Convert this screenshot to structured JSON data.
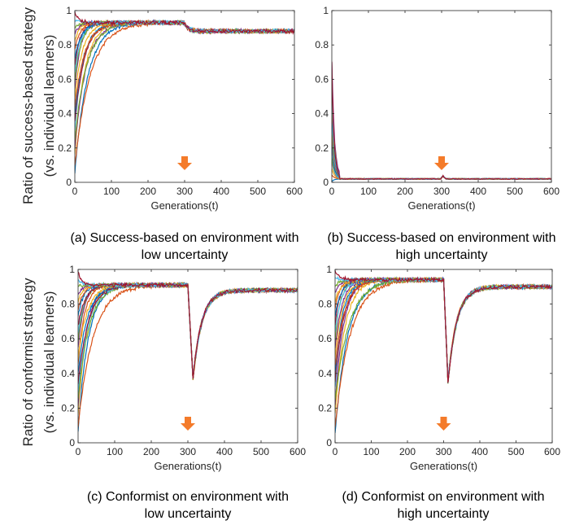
{
  "figure": {
    "y_label_top": [
      "Ratio of success-based strategy",
      "(vs. individual learners)"
    ],
    "y_label_bottom": [
      "Ratio of conformist strategy",
      "(vs. individual learners)"
    ]
  },
  "chart_data": [
    {
      "id": "a",
      "type": "line",
      "caption": [
        "(a) Success-based on environment with",
        "low uncertainty"
      ],
      "xlabel": "Generations(t)",
      "xlim": [
        0,
        600
      ],
      "ylim": [
        0,
        1
      ],
      "xticks": [
        "0",
        "100",
        "200",
        "300",
        "400",
        "500",
        "600"
      ],
      "yticks": [
        "0",
        "0.2",
        "0.4",
        "0.6",
        "0.8",
        "1"
      ],
      "annotation": {
        "type": "down-arrow",
        "x": 300,
        "color": "#F47B2A"
      },
      "series_summary": {
        "count": 21,
        "initial_values": [
          0,
          0.05,
          0.1,
          0.15,
          0.2,
          0.25,
          0.3,
          0.35,
          0.4,
          0.45,
          0.5,
          0.55,
          0.6,
          0.65,
          0.7,
          0.75,
          0.8,
          0.85,
          0.9,
          0.95,
          1.0
        ],
        "pattern": "saturating_rise",
        "plateau_before": 0.93,
        "plateau_after": 0.88,
        "change_at": 300
      }
    },
    {
      "id": "b",
      "type": "line",
      "caption": [
        "(b) Success-based on environment with",
        "high uncertainty"
      ],
      "xlabel": "Generations(t)",
      "xlim": [
        0,
        600
      ],
      "ylim": [
        0,
        1
      ],
      "xticks": [
        "0",
        "100",
        "200",
        "300",
        "400",
        "500",
        "600"
      ],
      "yticks": [
        "0",
        "0.2",
        "0.4",
        "0.6",
        "0.8",
        "1"
      ],
      "annotation": {
        "type": "down-arrow",
        "x": 300,
        "color": "#F47B2A"
      },
      "series_summary": {
        "count": 21,
        "initial_values": [
          0,
          0.05,
          0.1,
          0.15,
          0.2,
          0.25,
          0.3,
          0.35,
          0.4,
          0.45,
          0.5,
          0.55,
          0.6,
          0.65,
          0.7,
          0.75,
          0.8,
          0.85,
          0.9,
          0.95,
          1.0
        ],
        "pattern": "rapid_decay",
        "floor": 0.02,
        "change_at": 300,
        "blip_peak": 0.04
      }
    },
    {
      "id": "c",
      "type": "line",
      "caption": [
        "(c) Conformist on environment with",
        "low uncertainty"
      ],
      "xlabel": "Generations(t)",
      "xlim": [
        0,
        600
      ],
      "ylim": [
        0,
        1
      ],
      "xticks": [
        "0",
        "100",
        "200",
        "300",
        "400",
        "500",
        "600"
      ],
      "yticks": [
        "0",
        "0.2",
        "0.4",
        "0.6",
        "0.8",
        "1"
      ],
      "annotation": {
        "type": "down-arrow",
        "x": 300,
        "color": "#F47B2A"
      },
      "series_summary": {
        "count": 21,
        "initial_values": [
          0,
          0.05,
          0.1,
          0.15,
          0.2,
          0.25,
          0.3,
          0.35,
          0.4,
          0.45,
          0.5,
          0.55,
          0.6,
          0.65,
          0.7,
          0.75,
          0.8,
          0.85,
          0.9,
          0.95,
          1.0
        ],
        "pattern": "rise_drop_recover",
        "plateau_before": 0.91,
        "dip_min": 0.33,
        "dip_x": 315,
        "plateau_after": 0.88,
        "change_at": 300
      }
    },
    {
      "id": "d",
      "type": "line",
      "caption": [
        "(d) Conformist on environment with",
        "high uncertainty"
      ],
      "xlabel": "Generations(t)",
      "xlim": [
        0,
        600
      ],
      "ylim": [
        0,
        1
      ],
      "xticks": [
        "0",
        "100",
        "200",
        "300",
        "400",
        "500",
        "600"
      ],
      "yticks": [
        "0",
        "0.2",
        "0.4",
        "0.6",
        "0.8",
        "1"
      ],
      "annotation": {
        "type": "down-arrow",
        "x": 300,
        "color": "#F47B2A"
      },
      "series_summary": {
        "count": 21,
        "initial_values": [
          0,
          0.05,
          0.1,
          0.15,
          0.2,
          0.25,
          0.3,
          0.35,
          0.4,
          0.45,
          0.5,
          0.55,
          0.6,
          0.65,
          0.7,
          0.75,
          0.8,
          0.85,
          0.9,
          0.95,
          1.0
        ],
        "pattern": "rise_drop_recover",
        "plateau_before": 0.94,
        "dip_min": 0.35,
        "dip_x": 312,
        "plateau_after": 0.9,
        "change_at": 300
      }
    }
  ],
  "series_colors": [
    "#0072BD",
    "#D95319",
    "#EDB120",
    "#7E2F8E",
    "#77AC30",
    "#4DBEEE",
    "#A2142F",
    "#0072BD",
    "#D95319",
    "#EDB120",
    "#7E2F8E",
    "#77AC30",
    "#4DBEEE",
    "#A2142F",
    "#0072BD",
    "#D95319",
    "#EDB120",
    "#7E2F8E",
    "#77AC30",
    "#4DBEEE",
    "#A2142F"
  ],
  "style": {
    "axis_color": "#262626",
    "arrow_color": "#F47B2A"
  }
}
